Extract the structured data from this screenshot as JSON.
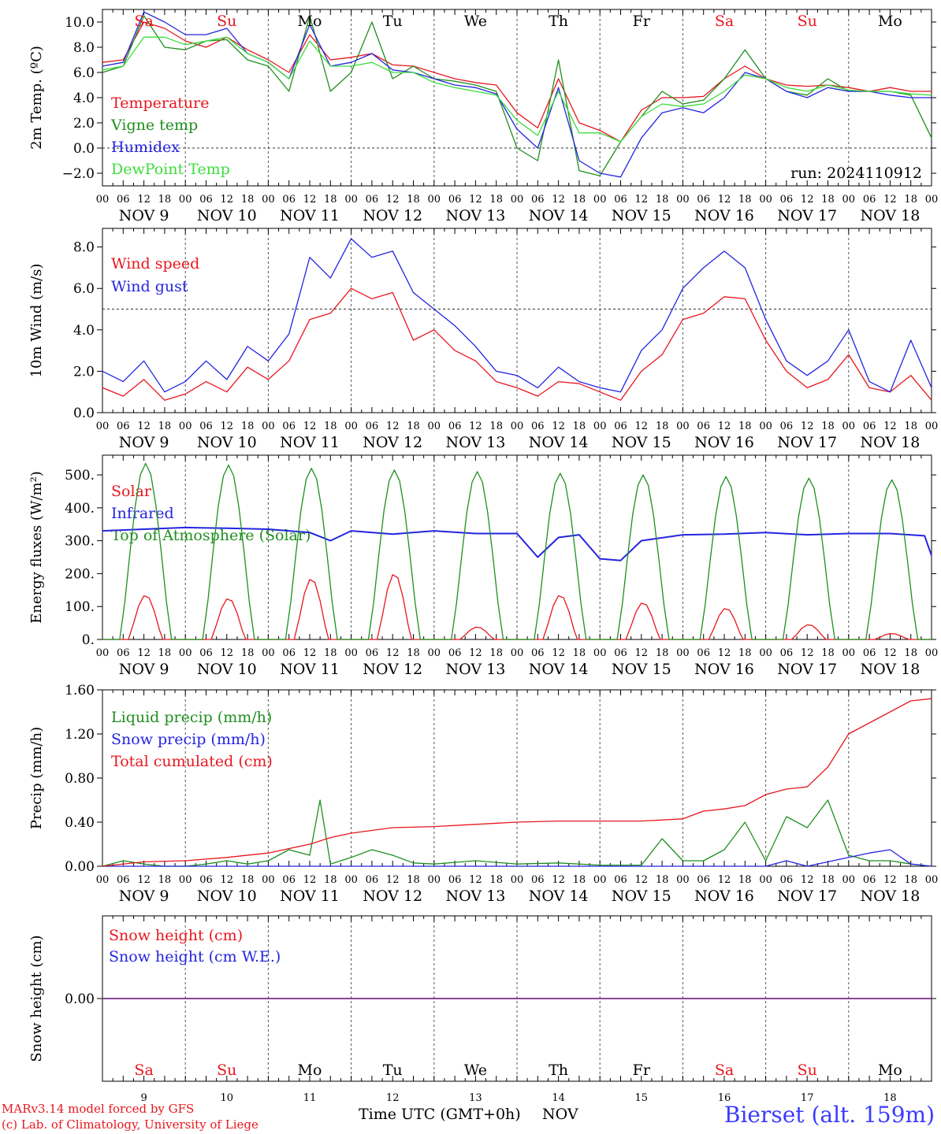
{
  "meta": {
    "model": "MARv3.14 model forced by GFS",
    "lab": "(c) Lab. of Climatology, University of Liege",
    "station": "Bierset (alt. 159m)",
    "x_title": "Time UTC (GMT+0h)",
    "x_month": "NOV",
    "run": "run: 2024110912"
  },
  "colors": {
    "red": "#e8161e",
    "green": "#1f8f1f",
    "blue": "#2424e0",
    "lightgreen": "#3ddc3d",
    "purple": "#7a2a8a"
  },
  "time_axis": {
    "hour_ticks": [
      "00",
      "06",
      "12",
      "18"
    ],
    "date_labels": [
      "NOV  9",
      "NOV 10",
      "NOV 11",
      "NOV 12",
      "NOV 13",
      "NOV 14",
      "NOV 15",
      "NOV 16",
      "NOV 17",
      "NOV 18"
    ],
    "weekdays": [
      "Sa",
      "Su",
      "Mo",
      "Tu",
      "We",
      "Th",
      "Fr",
      "Sa",
      "Su",
      "Mo"
    ],
    "weekend": [
      true,
      true,
      false,
      false,
      false,
      false,
      false,
      true,
      true,
      false
    ],
    "day_numbers": [
      "9",
      "10",
      "11",
      "12",
      "13",
      "14",
      "15",
      "16",
      "17",
      "18"
    ]
  },
  "chart_data": [
    {
      "type": "line",
      "ylabel": "2m Temp. (ºC)",
      "ylim": [
        -3,
        11
      ],
      "yticks": [
        "10.0",
        "8.0",
        "6.0",
        "4.0",
        "2.0",
        "0.0",
        "−2.0"
      ],
      "ytick_values": [
        10,
        8,
        6,
        4,
        2,
        0,
        -2
      ],
      "ref_line": 0,
      "x_unit": "hours since NOV 9 00 UTC",
      "series": [
        {
          "name": "Temperature",
          "color": "red",
          "x": [
            0,
            6,
            12,
            18,
            24,
            30,
            36,
            42,
            48,
            54,
            60,
            66,
            72,
            78,
            84,
            90,
            96,
            102,
            108,
            114,
            120,
            126,
            132,
            138,
            144,
            150,
            156,
            162,
            168,
            174,
            180,
            186,
            192,
            198,
            204,
            210,
            216,
            222,
            228,
            234,
            240
          ],
          "y": [
            6.8,
            7.0,
            10.0,
            9.5,
            8.5,
            8.0,
            8.8,
            7.8,
            7.0,
            6.0,
            9.0,
            7.0,
            7.2,
            7.5,
            6.6,
            6.5,
            6.0,
            5.5,
            5.2,
            5.0,
            2.8,
            1.6,
            5.5,
            2.0,
            1.4,
            0.5,
            3.0,
            4.0,
            4.0,
            4.1,
            5.5,
            6.5,
            5.5,
            5.0,
            4.9,
            5.0,
            4.8,
            4.5,
            4.8,
            4.5,
            4.5
          ]
        },
        {
          "name": "Vigne temp",
          "color": "green",
          "x": [
            0,
            6,
            12,
            18,
            24,
            30,
            36,
            42,
            48,
            54,
            60,
            66,
            72,
            78,
            84,
            90,
            96,
            102,
            108,
            114,
            120,
            126,
            132,
            138,
            144,
            150,
            156,
            162,
            168,
            174,
            180,
            186,
            192,
            198,
            204,
            210,
            216,
            222,
            228,
            234,
            240
          ],
          "y": [
            6.0,
            6.5,
            10.5,
            8.0,
            7.8,
            8.5,
            8.6,
            7.0,
            6.5,
            4.5,
            10.5,
            4.5,
            6.0,
            10.0,
            5.5,
            6.5,
            5.5,
            5.3,
            5.0,
            4.5,
            0.0,
            -1.0,
            7.0,
            -1.8,
            -2.2,
            0.5,
            2.5,
            4.5,
            3.5,
            3.8,
            5.5,
            7.8,
            5.5,
            4.5,
            4.2,
            5.5,
            4.5,
            4.5,
            4.5,
            4.2,
            0.8
          ]
        },
        {
          "name": "Humidex",
          "color": "blue",
          "x": [
            0,
            6,
            12,
            18,
            24,
            30,
            36,
            42,
            48,
            54,
            60,
            66,
            72,
            78,
            84,
            90,
            96,
            102,
            108,
            114,
            120,
            126,
            132,
            138,
            144,
            150,
            156,
            162,
            168,
            174,
            180,
            186,
            192,
            198,
            204,
            210,
            216,
            222,
            228,
            234,
            240
          ],
          "y": [
            6.5,
            6.8,
            10.8,
            10.0,
            9.0,
            9.0,
            9.5,
            7.5,
            6.8,
            5.5,
            9.8,
            6.5,
            6.8,
            7.5,
            6.2,
            6.0,
            5.5,
            5.0,
            4.8,
            4.3,
            1.5,
            0.0,
            4.8,
            -1.0,
            -2.0,
            -2.3,
            0.8,
            2.8,
            3.2,
            2.8,
            4.0,
            6.0,
            5.5,
            4.5,
            4.0,
            4.8,
            4.5,
            4.5,
            4.2,
            4.0,
            4.0
          ]
        },
        {
          "name": "DewPoint Temp",
          "color": "lightgreen",
          "x": [
            0,
            6,
            12,
            18,
            24,
            30,
            36,
            42,
            48,
            54,
            60,
            66,
            72,
            78,
            84,
            90,
            96,
            102,
            108,
            114,
            120,
            126,
            132,
            138,
            144,
            150,
            156,
            162,
            168,
            174,
            180,
            186,
            192,
            198,
            204,
            210,
            216,
            222,
            228,
            234,
            240
          ],
          "y": [
            6.2,
            6.5,
            8.8,
            8.8,
            8.2,
            8.5,
            8.8,
            7.5,
            6.8,
            5.5,
            8.5,
            6.5,
            6.5,
            6.8,
            6.0,
            6.0,
            5.2,
            4.8,
            4.5,
            4.2,
            2.2,
            1.0,
            4.5,
            1.2,
            1.2,
            0.5,
            2.5,
            3.5,
            3.3,
            3.5,
            4.5,
            5.8,
            5.5,
            4.8,
            4.5,
            5.0,
            4.6,
            4.5,
            4.5,
            4.3,
            4.2
          ]
        }
      ]
    },
    {
      "type": "line",
      "ylabel": "10m Wind (m/s)",
      "ylim": [
        0,
        8.9
      ],
      "yticks": [
        "8.0",
        "6.0",
        "4.0",
        "2.0",
        "0.0"
      ],
      "ytick_values": [
        8,
        6,
        4,
        2,
        0
      ],
      "ref_line": 5,
      "x_unit": "hours since NOV 9 00 UTC",
      "series": [
        {
          "name": "Wind speed",
          "color": "red",
          "x": [
            0,
            6,
            12,
            18,
            24,
            30,
            36,
            42,
            48,
            54,
            60,
            66,
            72,
            78,
            84,
            90,
            96,
            102,
            108,
            114,
            120,
            126,
            132,
            138,
            144,
            150,
            156,
            162,
            168,
            174,
            180,
            186,
            192,
            198,
            204,
            210,
            216,
            222,
            228,
            234,
            240
          ],
          "y": [
            1.2,
            0.8,
            1.6,
            0.6,
            0.9,
            1.5,
            1.0,
            2.2,
            1.6,
            2.5,
            4.5,
            4.8,
            6.0,
            5.5,
            5.8,
            3.5,
            4.0,
            3.0,
            2.5,
            1.5,
            1.2,
            0.8,
            1.5,
            1.4,
            1.0,
            0.6,
            2.0,
            2.8,
            4.5,
            4.8,
            5.6,
            5.5,
            3.5,
            2.0,
            1.2,
            1.6,
            2.8,
            1.2,
            1.0,
            1.8,
            0.6
          ]
        },
        {
          "name": "Wind gust",
          "color": "blue",
          "x": [
            0,
            6,
            12,
            18,
            24,
            30,
            36,
            42,
            48,
            54,
            60,
            66,
            72,
            78,
            84,
            90,
            96,
            102,
            108,
            114,
            120,
            126,
            132,
            138,
            144,
            150,
            156,
            162,
            168,
            174,
            180,
            186,
            192,
            198,
            204,
            210,
            216,
            222,
            228,
            234,
            240
          ],
          "y": [
            2.0,
            1.5,
            2.5,
            1.0,
            1.5,
            2.5,
            1.6,
            3.2,
            2.5,
            3.8,
            7.5,
            6.5,
            8.4,
            7.5,
            7.8,
            5.8,
            5.0,
            4.2,
            3.2,
            2.0,
            1.8,
            1.2,
            2.2,
            1.5,
            1.2,
            1.0,
            3.0,
            4.0,
            6.0,
            7.0,
            7.8,
            7.0,
            4.5,
            2.5,
            1.8,
            2.5,
            4.0,
            1.5,
            1.0,
            3.5,
            1.2
          ]
        }
      ]
    },
    {
      "type": "line",
      "ylabel": "Energy fluxes (W/m²)",
      "ylim": [
        0,
        560
      ],
      "yticks": [
        "500.",
        "400.",
        "300.",
        "200.",
        "100.",
        "0."
      ],
      "ytick_values": [
        500,
        400,
        300,
        200,
        100,
        0
      ],
      "x_unit": "hours since NOV 9 00 UTC",
      "series": [
        {
          "name": "Solar",
          "color": "red",
          "peaks": [
            135,
            125,
            185,
            200,
            38,
            135,
            112,
            95,
            45,
            18
          ]
        },
        {
          "name": "Infrared",
          "color": "blue",
          "x": [
            0,
            12,
            24,
            36,
            48,
            60,
            66,
            72,
            84,
            96,
            108,
            120,
            126,
            132,
            138,
            144,
            150,
            156,
            168,
            180,
            192,
            204,
            216,
            228,
            238,
            240
          ],
          "y": [
            330,
            335,
            340,
            338,
            335,
            325,
            300,
            330,
            320,
            330,
            322,
            322,
            250,
            310,
            318,
            245,
            240,
            300,
            318,
            320,
            325,
            318,
            322,
            322,
            315,
            255
          ]
        },
        {
          "name": "Top of Atmosphere (Solar)",
          "color": "green",
          "peaks": [
            535,
            530,
            520,
            515,
            510,
            505,
            500,
            495,
            490,
            485
          ]
        }
      ]
    },
    {
      "type": "line",
      "ylabel": "Precip (mm/h)",
      "ylim": [
        0,
        1.6
      ],
      "yticks": [
        "1.60",
        "1.20",
        "0.80",
        "0.40",
        "0.00"
      ],
      "ytick_values": [
        1.6,
        1.2,
        0.8,
        0.4,
        0
      ],
      "x_unit": "hours since NOV 9 00 UTC",
      "series": [
        {
          "name": "Liquid precip (mm/h)",
          "color": "green",
          "x": [
            0,
            6,
            12,
            18,
            24,
            30,
            36,
            42,
            48,
            54,
            60,
            63,
            66,
            72,
            78,
            84,
            90,
            96,
            108,
            120,
            132,
            144,
            156,
            162,
            168,
            174,
            180,
            186,
            192,
            198,
            204,
            210,
            216,
            222,
            228,
            234,
            240
          ],
          "y": [
            0,
            0.05,
            0.02,
            0,
            0,
            0.02,
            0.05,
            0.02,
            0.05,
            0.15,
            0.1,
            0.6,
            0.02,
            0.08,
            0.15,
            0.1,
            0.03,
            0.02,
            0.05,
            0.02,
            0.03,
            0.01,
            0.01,
            0.25,
            0.05,
            0.05,
            0.15,
            0.4,
            0.05,
            0.45,
            0.35,
            0.6,
            0.1,
            0.05,
            0.05,
            0.02,
            0
          ]
        },
        {
          "name": "Snow precip (mm/h)",
          "color": "blue",
          "x": [
            0,
            192,
            198,
            204,
            216,
            222,
            228,
            234,
            240
          ],
          "y": [
            0,
            0,
            0.05,
            0,
            0.08,
            0.12,
            0.15,
            0.02,
            0
          ]
        },
        {
          "name": "Total cumulated (cm)",
          "color": "red",
          "x": [
            0,
            12,
            24,
            36,
            48,
            60,
            66,
            72,
            84,
            96,
            108,
            120,
            132,
            144,
            156,
            168,
            174,
            180,
            186,
            192,
            198,
            204,
            210,
            216,
            222,
            228,
            234,
            240
          ],
          "y": [
            0,
            0.04,
            0.05,
            0.08,
            0.12,
            0.2,
            0.26,
            0.3,
            0.35,
            0.36,
            0.38,
            0.4,
            0.41,
            0.41,
            0.41,
            0.43,
            0.5,
            0.52,
            0.55,
            0.65,
            0.7,
            0.72,
            0.9,
            1.2,
            1.3,
            1.4,
            1.5,
            1.52
          ]
        }
      ]
    },
    {
      "type": "line",
      "ylabel": "Snow height (cm)",
      "ylim": [
        -1,
        1
      ],
      "yticks": [
        "0.00"
      ],
      "ytick_values": [
        0
      ],
      "x_unit": "hours since NOV 9 00 UTC",
      "series": [
        {
          "name": "Snow height (cm)",
          "color": "red",
          "x": [
            0,
            240
          ],
          "y": [
            0,
            0
          ]
        },
        {
          "name": "Snow height (cm W.E.)",
          "color": "blue",
          "x": [
            0,
            240
          ],
          "y": [
            0,
            0
          ]
        }
      ]
    }
  ]
}
